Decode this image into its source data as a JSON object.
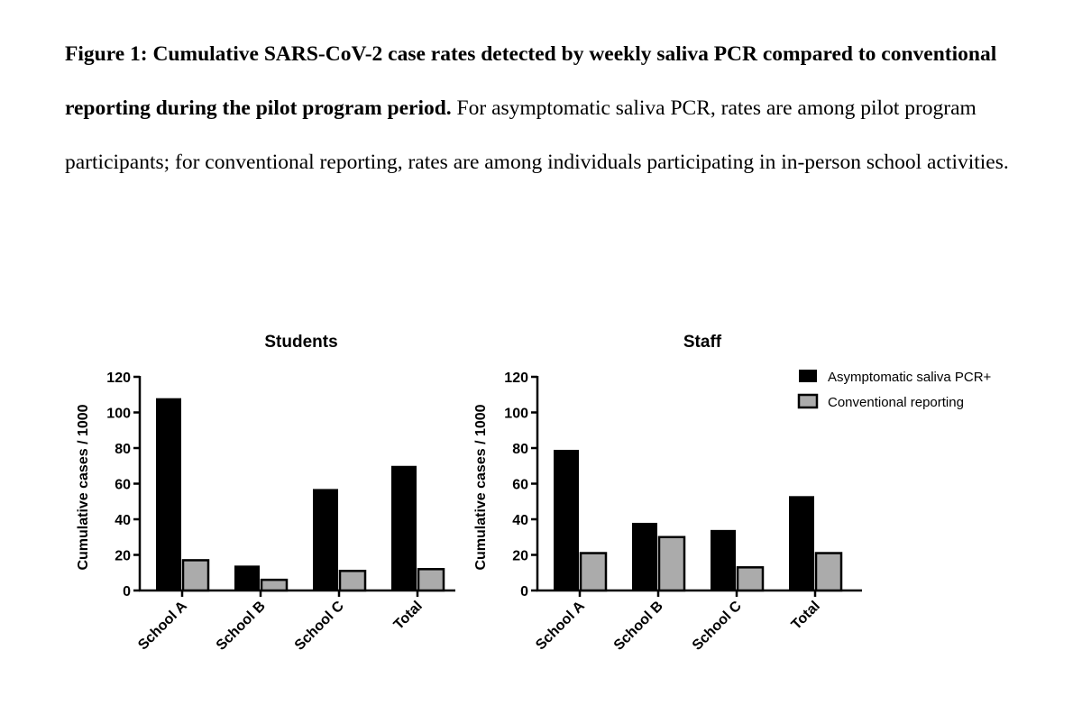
{
  "caption": {
    "bold": "Figure 1: Cumulative SARS-CoV-2 case rates detected by weekly saliva PCR compared to conventional reporting during the pilot program period.",
    "text": " For asymptomatic saliva PCR, rates are among pilot program participants; for conventional reporting, rates are among individuals participating in in-person school activities."
  },
  "colors": {
    "series1": "#000000",
    "series2": "#ababab",
    "axis": "#000000"
  },
  "chart_data": [
    {
      "type": "bar",
      "title": "Students",
      "ylabel": "Cumulative cases / 1000",
      "xlabel": "",
      "ylim": [
        0,
        120
      ],
      "yticks": [
        "0",
        "20",
        "40",
        "60",
        "80",
        "100",
        "120"
      ],
      "categories": [
        "School A",
        "School B",
        "School C",
        "Total"
      ],
      "series": [
        {
          "name": "Asymptomatic saliva PCR+",
          "values": [
            108,
            14,
            57,
            70
          ]
        },
        {
          "name": "Conventional reporting",
          "values": [
            17,
            6,
            11,
            12
          ]
        }
      ],
      "grid": false
    },
    {
      "type": "bar",
      "title": "Staff",
      "ylabel": "Cumulative cases / 1000",
      "xlabel": "",
      "ylim": [
        0,
        120
      ],
      "yticks": [
        "0",
        "20",
        "40",
        "60",
        "80",
        "100",
        "120"
      ],
      "categories": [
        "School A",
        "School B",
        "School C",
        "Total"
      ],
      "series": [
        {
          "name": "Asymptomatic saliva PCR+",
          "values": [
            79,
            38,
            34,
            53
          ]
        },
        {
          "name": "Conventional reporting",
          "values": [
            21,
            30,
            13,
            21
          ]
        }
      ],
      "grid": false,
      "legend": "top-right"
    }
  ]
}
